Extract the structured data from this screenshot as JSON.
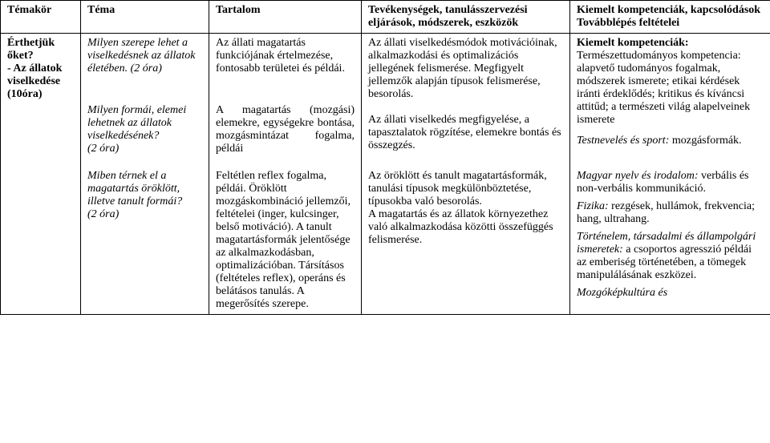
{
  "headers": {
    "c1": "Témakör",
    "c2": "Téma",
    "c3": "Tartalom",
    "c4": "Tevékenységek, tanulásszervezési eljárások, módszerek, eszközök",
    "c5": "Kiemelt kompetenciák, kapcsolódások\nTovábblépés feltételei"
  },
  "row1": {
    "c1": {
      "q": "Érthetjük őket?",
      "t": "- Az állatok viselkedése (10óra)"
    },
    "c2": {
      "p1": "Milyen szerepe lehet a viselkedésnek az állatok életében. (2 óra)",
      "p2": "Milyen formái, elemei lehetnek az állatok viselkedésének?\n(2 óra)"
    },
    "c3": {
      "p1": "Az állati magatartás funkciójának értelmezése, fontosabb területei és példái.",
      "p2": "A magatartás (mozgási) elemekre, egységekre bontása, mozgásmintázat fogalma, példái"
    },
    "c4": {
      "p1": "Az állati viselkedésmódok motivációinak, alkalmazkodási és optimalizációs jellegének felismerése. Megfigyelt jellemzők alapján típusok felismerése, besorolás.",
      "p2": "Az állati viselkedés megfigyelése, a tapasztalatok rögzítése, elemekre bontás és összegzés."
    },
    "c5": {
      "lead": "Kiemelt kompetenciák:",
      "p1": "Természettudományos kompetencia: alapvető tudományos fogalmak, módszerek ismerete; etikai kérdések iránti érdeklődés; kritikus és kíváncsi attitűd; a természeti világ alapelveinek ismerete",
      "p2lead": "Testnevelés és sport:",
      "p2": "mozgásformák."
    }
  },
  "row2": {
    "c2": {
      "p1": "Miben térnek el a magatartás öröklött, illetve tanult formái?\n(2 óra)"
    },
    "c3": {
      "p1": "Feltétlen reflex fogalma, példái. Öröklött mozgáskombináció jellemzői, feltételei (inger, kulcsinger, belső motiváció). A tanult magatartásformák jelentősége az alkalmazkodásban, optimalizációban. Társításos (feltételes reflex), operáns és belátásos tanulás. A megerősítés szerepe."
    },
    "c4": {
      "p1": "Az öröklött és tanult magatartásformák, tanulási típusok megkülönböztetése, típusokba való besorolás.\nA magatartás és az állatok környezethez való alkalmazkodása közötti összefüggés felismerése."
    },
    "c5": {
      "p1lead": "Magyar nyelv és irodalom:",
      "p1": "verbális és non-verbális kommunikáció.",
      "p2lead": "Fizika:",
      "p2": "rezgések, hullámok, frekvencia; hang, ultrahang.",
      "p3lead": "Történelem, társadalmi és állampolgári ismeretek:",
      "p3": "a csoportos agresszió példái az emberiség történetében, a tömegek manipulálásának eszközei.",
      "p4lead": "Mozgóképkultúra és"
    }
  }
}
